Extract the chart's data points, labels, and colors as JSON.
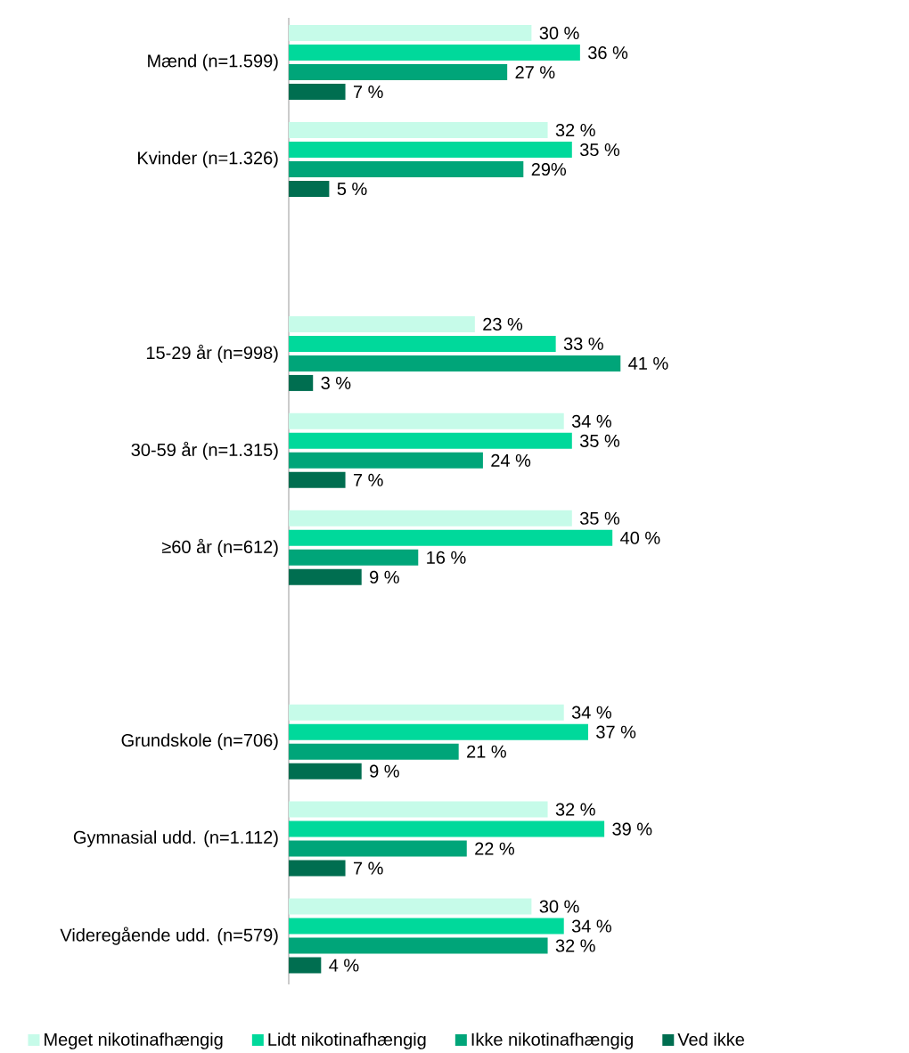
{
  "chart_data": {
    "type": "bar",
    "orientation": "horizontal",
    "categories": [
      "Mænd (n=1.599)",
      "Kvinder (n=1.326)",
      null,
      "15-29 år (n=998)",
      "30-59 år (n=1.315)",
      "≥60 år (n=612)",
      null,
      "Grundskole (n=706)",
      "Gymnasial udd. (n=1.112)",
      "Videregående udd. (n=579)"
    ],
    "series": [
      {
        "name": "Meget nikotinafhængig",
        "color": "#c6fbe9",
        "values": [
          30,
          32,
          null,
          23,
          34,
          35,
          null,
          34,
          32,
          30
        ],
        "value_labels": [
          "30 %",
          "32 %",
          null,
          "23 %",
          "34 %",
          "35 %",
          null,
          "34 %",
          "32 %",
          "30 %"
        ]
      },
      {
        "name": "Lidt nikotinafhængig",
        "color": "#00d99b",
        "values": [
          36,
          35,
          null,
          33,
          35,
          40,
          null,
          37,
          39,
          34
        ],
        "value_labels": [
          "36 %",
          "35 %",
          null,
          "33 %",
          "35 %",
          "40 %",
          null,
          "37 %",
          "39 %",
          "34 %"
        ]
      },
      {
        "name": "Ikke nikotinafhængig",
        "color": "#00a579",
        "values": [
          27,
          29,
          null,
          41,
          24,
          16,
          null,
          21,
          22,
          32
        ],
        "value_labels": [
          "27 %",
          "29%",
          null,
          "41 %",
          "24 %",
          "16 %",
          null,
          "21 %",
          "22 %",
          "32 %"
        ]
      },
      {
        "name": "Ved ikke",
        "color": "#006e50",
        "values": [
          7,
          5,
          null,
          3,
          7,
          9,
          null,
          9,
          7,
          4
        ],
        "value_labels": [
          "7 %",
          "5 %",
          null,
          "3 %",
          "7 %",
          "9 %",
          null,
          "9 %",
          "7 %",
          "4 %"
        ]
      }
    ],
    "tick_labels": "y",
    "legend": "bottom"
  }
}
